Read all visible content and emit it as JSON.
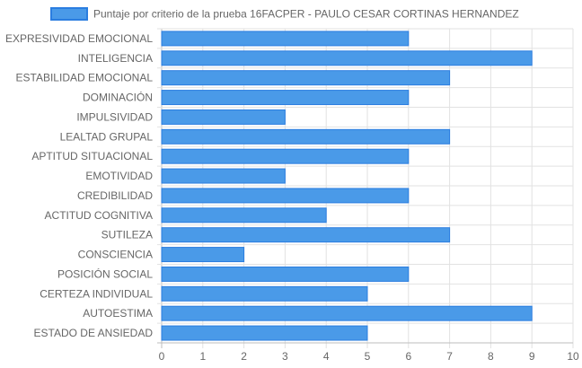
{
  "chart_data": {
    "type": "bar",
    "orientation": "horizontal",
    "categories": [
      "EXPRESIVIDAD EMOCIONAL",
      "INTELIGENCIA",
      "ESTABILIDAD EMOCIONAL",
      "DOMINACIÓN",
      "IMPULSIVIDAD",
      "LEALTAD GRUPAL",
      "APTITUD SITUACIONAL",
      "EMOTIVIDAD",
      "CREDIBILIDAD",
      "ACTITUD COGNITIVA",
      "SUTILEZA",
      "CONSCIENCIA",
      "POSICIÓN SOCIAL",
      "CERTEZA INDIVIDUAL",
      "AUTOESTIMA",
      "ESTADO DE ANSIEDAD"
    ],
    "series": [
      {
        "name": "Puntaje por criterio de la prueba 16FACPER - PAULO CESAR CORTINAS HERNANDEZ",
        "values": [
          6,
          9,
          7,
          6,
          3,
          7,
          6,
          3,
          6,
          4,
          7,
          2,
          6,
          5,
          9,
          5
        ],
        "color": "#4a9ae8",
        "border_color": "#2a7de0"
      }
    ],
    "xlim": [
      0,
      10
    ],
    "x_ticks": [
      "0",
      "1",
      "2",
      "3",
      "4",
      "5",
      "6",
      "7",
      "8",
      "9",
      "10"
    ],
    "grid": true,
    "legend_position": "top"
  }
}
